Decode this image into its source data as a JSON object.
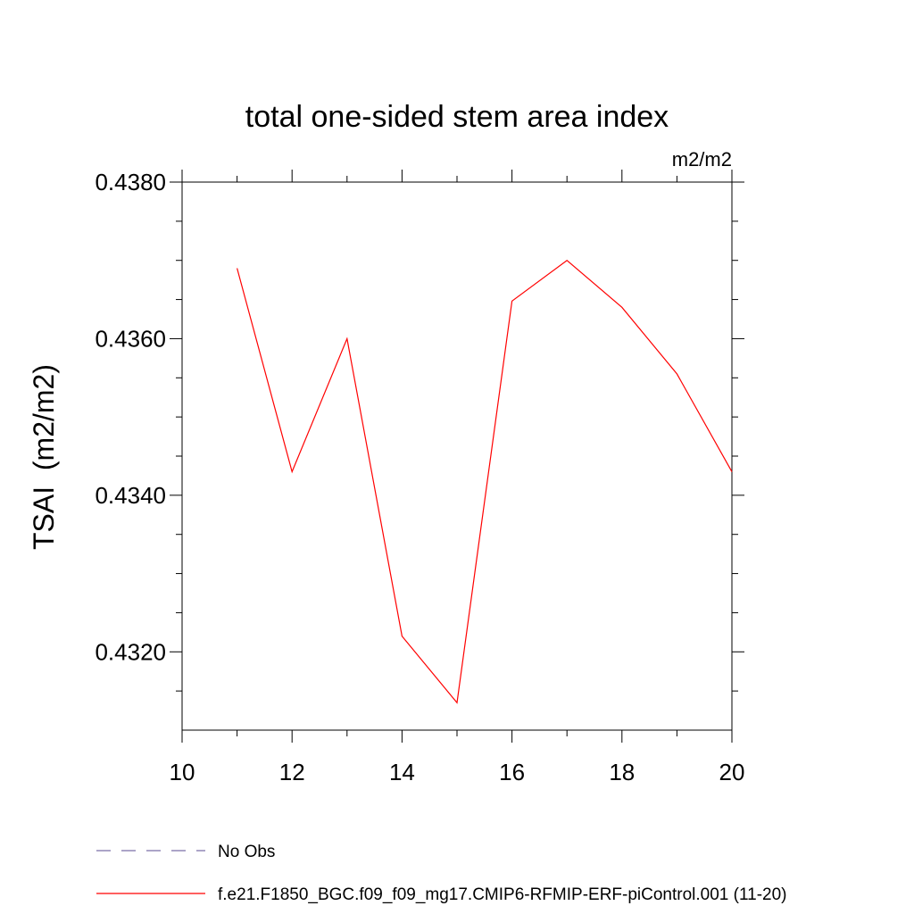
{
  "chart_data": {
    "type": "line",
    "title": "total one-sided stem area index",
    "units_label": "m2/m2",
    "ylabel": "TSAI  (m2/m2)",
    "xlabel": "",
    "xlim": [
      10,
      20
    ],
    "ylim": [
      0.431,
      0.438
    ],
    "x_ticks": [
      10,
      12,
      14,
      16,
      18,
      20
    ],
    "x_tick_labels": [
      "10",
      "12",
      "14",
      "16",
      "18",
      "20"
    ],
    "y_ticks": [
      0.432,
      0.434,
      0.436,
      0.438
    ],
    "y_tick_labels": [
      "0.4320",
      "0.4340",
      "0.4360",
      "0.4380"
    ],
    "grid": false,
    "legend_position": "bottom",
    "series": [
      {
        "name": "No Obs",
        "color": "#7a6fa8",
        "dash": "dashed",
        "x": [],
        "y": []
      },
      {
        "name": "f.e21.F1850_BGC.f09_f09_mg17.CMIP6-RFMIP-ERF-piControl.001 (11-20)",
        "color": "#ff0000",
        "dash": "solid",
        "x": [
          11,
          12,
          13,
          14,
          15,
          16,
          17,
          18,
          19,
          20
        ],
        "y": [
          0.4369,
          0.4343,
          0.436,
          0.4322,
          0.43135,
          0.43648,
          0.437,
          0.4364,
          0.43555,
          0.4343
        ]
      }
    ]
  }
}
